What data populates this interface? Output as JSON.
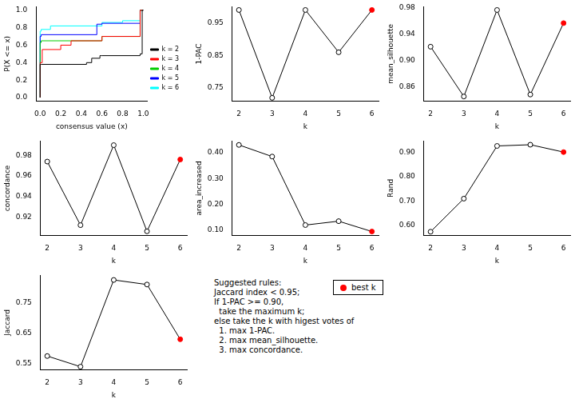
{
  "chart_data": [
    {
      "type": "line",
      "line_style": "step",
      "x_label": "consensus value (x)",
      "y_label": "P(X <= x)",
      "xlim": [
        -0.04,
        1.04
      ],
      "xticks": [
        {
          "value": 0,
          "label": "0.0"
        },
        0.2,
        0.4,
        0.6,
        0.8,
        {
          "value": 1,
          "label": "1.0"
        }
      ],
      "ylim": [
        -0.04,
        1.04
      ],
      "yticks": [
        {
          "value": 0,
          "label": "0.0"
        },
        0.2,
        0.4,
        0.6,
        0.8,
        {
          "value": 1,
          "label": "1.0"
        }
      ],
      "grid": false,
      "legend": "right",
      "series": [
        {
          "name": "k = 2",
          "color": "#000000",
          "x": [
            0,
            0.01,
            0.45,
            0.5,
            0.58,
            0.6,
            0.97,
            0.99,
            1.0
          ],
          "values": [
            0,
            0.38,
            0.38,
            0.4,
            0.45,
            0.48,
            0.48,
            0.5,
            1.0
          ]
        },
        {
          "name": "k = 3",
          "color": "#ff0000",
          "x": [
            0,
            0.02,
            0.2,
            0.3,
            0.6,
            0.97,
            1.0
          ],
          "values": [
            0,
            0.4,
            0.55,
            0.6,
            0.65,
            0.7,
            1.0
          ]
        },
        {
          "name": "k = 4",
          "color": "#00cd00",
          "x": [
            0,
            0.01,
            0.6,
            0.97,
            1.0
          ],
          "values": [
            0,
            0.63,
            0.65,
            0.7,
            1.0
          ]
        },
        {
          "name": "k = 5",
          "color": "#0000ff",
          "x": [
            0,
            0.01,
            0.55,
            0.6,
            0.97,
            1.0
          ],
          "values": [
            0,
            0.7,
            0.72,
            0.84,
            0.85,
            1.0
          ]
        },
        {
          "name": "k = 6",
          "color": "#00ffff",
          "x": [
            0,
            0.01,
            0.1,
            0.6,
            0.8,
            0.97,
            1.0
          ],
          "values": [
            0,
            0.76,
            0.78,
            0.82,
            0.86,
            0.88,
            1.0
          ]
        }
      ]
    },
    {
      "type": "line",
      "marker": "circle",
      "x_label": "k",
      "y_label": "1-PAC",
      "grid": false,
      "xlim": [
        1.8,
        6.2
      ],
      "xticks": [
        2,
        3,
        4,
        5,
        6
      ],
      "ylim": [
        0.71,
        1.0
      ],
      "yticks": [
        0.75,
        0.85,
        0.95
      ],
      "series": [
        {
          "name": "1-PAC",
          "color": "#000000",
          "colors": [
            "#000000",
            "#000000",
            "#000000",
            "#000000",
            "#ff0000"
          ],
          "x": [
            2,
            3,
            4,
            5,
            6
          ],
          "values": [
            0.99,
            0.72,
            0.99,
            0.86,
            0.99
          ]
        }
      ]
    },
    {
      "type": "line",
      "marker": "circle",
      "x_label": "k",
      "y_label": "mean_silhouette",
      "grid": false,
      "xlim": [
        1.8,
        6.2
      ],
      "xticks": [
        2,
        3,
        4,
        5,
        6
      ],
      "ylim": [
        0.838,
        0.982
      ],
      "yticks": [
        0.86,
        {
          "value": 0.9,
          "label": "0.90"
        },
        0.94,
        0.98
      ],
      "series": [
        {
          "name": "mean_silhouette",
          "color": "#000000",
          "colors": [
            "#000000",
            "#000000",
            "#000000",
            "#000000",
            "#ff0000"
          ],
          "x": [
            2,
            3,
            4,
            5,
            6
          ],
          "values": [
            0.921,
            0.845,
            0.977,
            0.848,
            0.957
          ]
        }
      ]
    },
    {
      "type": "line",
      "marker": "circle",
      "x_label": "k",
      "y_label": "concordance",
      "grid": false,
      "xlim": [
        1.8,
        6.2
      ],
      "xticks": [
        2,
        3,
        4,
        5,
        6
      ],
      "ylim": [
        0.902,
        0.994
      ],
      "yticks": [
        0.92,
        0.94,
        0.96,
        0.98
      ],
      "series": [
        {
          "name": "concordance",
          "color": "#000000",
          "colors": [
            "#000000",
            "#000000",
            "#000000",
            "#000000",
            "#ff0000"
          ],
          "x": [
            2,
            3,
            4,
            5,
            6
          ],
          "values": [
            0.974,
            0.912,
            0.99,
            0.906,
            0.976
          ]
        }
      ]
    },
    {
      "type": "line",
      "marker": "circle",
      "x_label": "k",
      "y_label": "area_increased",
      "grid": false,
      "xlim": [
        1.8,
        6.2
      ],
      "xticks": [
        2,
        3,
        4,
        5,
        6
      ],
      "ylim": [
        0.08,
        0.445
      ],
      "yticks": [
        {
          "value": 0.1,
          "label": "0.10"
        },
        {
          "value": 0.2,
          "label": "0.20"
        },
        {
          "value": 0.3,
          "label": "0.30"
        },
        {
          "value": 0.4,
          "label": "0.40"
        }
      ],
      "series": [
        {
          "name": "area_increased",
          "color": "#000000",
          "colors": [
            "#000000",
            "#000000",
            "#000000",
            "#000000",
            "#ff0000"
          ],
          "x": [
            2,
            3,
            4,
            5,
            6
          ],
          "values": [
            0.43,
            0.385,
            0.12,
            0.135,
            0.095
          ]
        }
      ]
    },
    {
      "type": "line",
      "marker": "circle",
      "x_label": "k",
      "y_label": "Rand",
      "grid": false,
      "xlim": [
        1.8,
        6.2
      ],
      "xticks": [
        2,
        3,
        4,
        5,
        6
      ],
      "ylim": [
        0.56,
        0.945
      ],
      "yticks": [
        {
          "value": 0.6,
          "label": "0.60"
        },
        {
          "value": 0.7,
          "label": "0.70"
        },
        {
          "value": 0.8,
          "label": "0.80"
        },
        {
          "value": 0.9,
          "label": "0.90"
        }
      ],
      "series": [
        {
          "name": "Rand",
          "color": "#000000",
          "colors": [
            "#000000",
            "#000000",
            "#000000",
            "#000000",
            "#ff0000"
          ],
          "x": [
            2,
            3,
            4,
            5,
            6
          ],
          "values": [
            0.575,
            0.71,
            0.925,
            0.93,
            0.9
          ]
        }
      ]
    },
    {
      "type": "line",
      "marker": "circle",
      "x_label": "k",
      "y_label": "Jaccard",
      "grid": false,
      "xlim": [
        1.8,
        6.2
      ],
      "xticks": [
        2,
        3,
        4,
        5,
        6
      ],
      "ylim": [
        0.53,
        0.84
      ],
      "yticks": [
        0.55,
        0.65,
        0.75
      ],
      "series": [
        {
          "name": "Jaccard",
          "color": "#000000",
          "colors": [
            "#000000",
            "#000000",
            "#000000",
            "#000000",
            "#ff0000"
          ],
          "x": [
            2,
            3,
            4,
            5,
            6
          ],
          "values": [
            0.575,
            0.54,
            0.825,
            0.81,
            0.63
          ]
        }
      ]
    }
  ],
  "notes": {
    "lines": [
      "Suggested rules:",
      "Jaccard index < 0.95;",
      "If 1-PAC >= 0.90,",
      "  take the maximum k;",
      "else take the k with higest votes of",
      "  1. max 1-PAC.",
      "  2. max mean_silhouette.",
      "  3. max concordance."
    ],
    "legend_label": "best k",
    "legend_color": "#ff0000"
  }
}
